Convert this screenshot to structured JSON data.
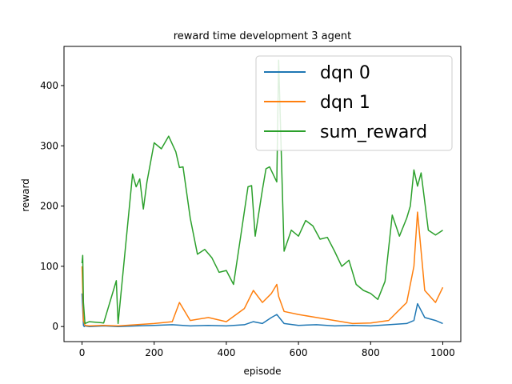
{
  "chart_data": {
    "type": "line",
    "title": "reward time development 3 agent",
    "xlabel": "episode",
    "ylabel": "reward",
    "xlim": [
      -50,
      1050
    ],
    "ylim": [
      -25,
      465
    ],
    "xticks": [
      0,
      200,
      400,
      600,
      800,
      1000
    ],
    "yticks": [
      0,
      100,
      200,
      300,
      400
    ],
    "grid": false,
    "legend_position": "top-right",
    "series": [
      {
        "name": "dqn 0",
        "color": "#1f77b4",
        "x": [
          0,
          2,
          4,
          6,
          8,
          20,
          60,
          100,
          150,
          200,
          250,
          300,
          350,
          400,
          450,
          475,
          500,
          525,
          540,
          560,
          600,
          650,
          700,
          750,
          800,
          850,
          900,
          920,
          930,
          950,
          980,
          1000
        ],
        "values": [
          55,
          30,
          2,
          0,
          1,
          0,
          1,
          0,
          1,
          2,
          3,
          1,
          2,
          1,
          3,
          8,
          5,
          15,
          20,
          5,
          2,
          3,
          1,
          2,
          1,
          3,
          5,
          10,
          38,
          15,
          10,
          5
        ]
      },
      {
        "name": "dqn 1",
        "color": "#ff7f0e",
        "x": [
          0,
          2,
          4,
          8,
          20,
          60,
          100,
          150,
          200,
          250,
          270,
          300,
          350,
          400,
          450,
          475,
          500,
          525,
          540,
          545,
          560,
          600,
          650,
          700,
          750,
          800,
          850,
          900,
          920,
          930,
          950,
          980,
          1000
        ],
        "values": [
          100,
          60,
          10,
          2,
          1,
          2,
          1,
          3,
          5,
          8,
          40,
          10,
          15,
          8,
          30,
          60,
          40,
          55,
          70,
          50,
          25,
          20,
          15,
          10,
          5,
          6,
          10,
          40,
          100,
          190,
          60,
          40,
          65
        ]
      },
      {
        "name": "sum_reward",
        "color": "#2ca02c",
        "x": [
          0,
          2,
          4,
          8,
          20,
          60,
          95,
          100,
          140,
          150,
          160,
          170,
          180,
          200,
          220,
          240,
          260,
          270,
          280,
          300,
          320,
          340,
          360,
          380,
          400,
          420,
          440,
          460,
          470,
          480,
          500,
          510,
          520,
          540,
          545,
          560,
          580,
          600,
          620,
          640,
          660,
          680,
          700,
          720,
          740,
          760,
          780,
          800,
          820,
          840,
          860,
          880,
          900,
          910,
          920,
          930,
          940,
          960,
          980,
          1000
        ],
        "values": [
          105,
          118,
          40,
          5,
          8,
          6,
          76,
          5,
          253,
          232,
          245,
          195,
          240,
          305,
          295,
          316,
          290,
          264,
          265,
          180,
          120,
          128,
          114,
          90,
          93,
          70,
          150,
          232,
          234,
          150,
          227,
          262,
          265,
          240,
          442,
          125,
          160,
          150,
          176,
          167,
          145,
          148,
          125,
          100,
          110,
          70,
          60,
          55,
          45,
          75,
          185,
          150,
          180,
          200,
          260,
          233,
          255,
          160,
          152,
          160
        ]
      }
    ]
  }
}
